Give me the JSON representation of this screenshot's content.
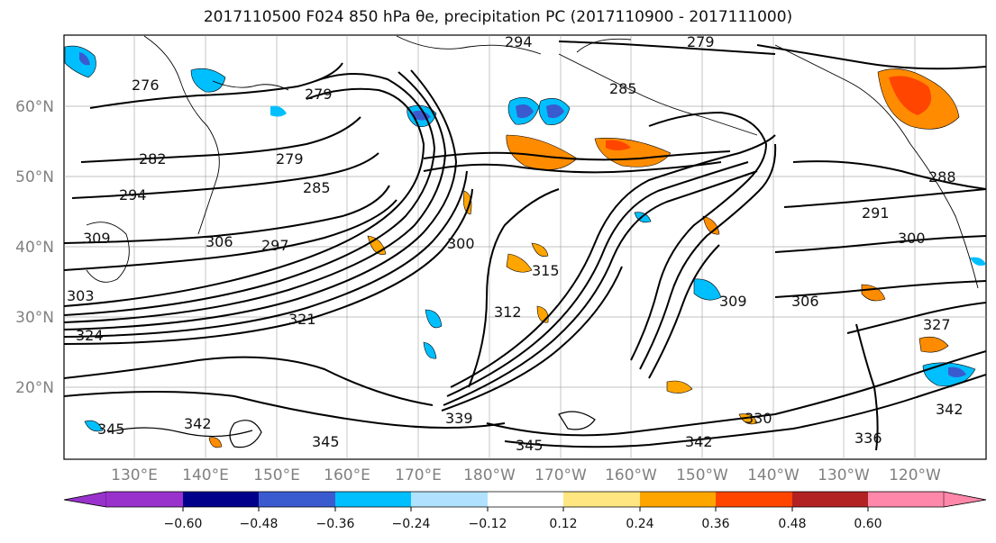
{
  "title": "2017110500 F024 850 hPa θe, precipitation PC (2017110900 - 2017111000)",
  "lat_labels": [
    "60°N",
    "50°N",
    "40°N",
    "30°N",
    "20°N"
  ],
  "lon_labels": [
    "130°E",
    "140°E",
    "150°E",
    "160°E",
    "170°E",
    "180°W",
    "170°W",
    "160°W",
    "150°W",
    "140°W",
    "130°W",
    "120°W"
  ],
  "colorbar": {
    "ticks": [
      "−0.60",
      "−0.48",
      "−0.36",
      "−0.24",
      "−0.12",
      "0.12",
      "0.24",
      "0.36",
      "0.48",
      "0.60"
    ],
    "colors": [
      "#9932cc",
      "#00008b",
      "#3a5bd0",
      "#00bfff",
      "#b0e2ff",
      "#ffffff",
      "#ffe680",
      "#ffa500",
      "#ff4500",
      "#b22222",
      "#ff88aa"
    ]
  },
  "contour_labels": [
    "294",
    "279",
    "285",
    "276",
    "279",
    "282",
    "279",
    "285",
    "294",
    "306",
    "309",
    "297",
    "300",
    "315",
    "303",
    "312",
    "309",
    "306",
    "291",
    "288",
    "300",
    "327",
    "321",
    "324",
    "339",
    "345",
    "342",
    "345",
    "336",
    "342",
    "345",
    "330",
    "342"
  ],
  "colors": {
    "contour": "#000000",
    "grid": "#9a9a9a",
    "axis_label": "#808080"
  }
}
